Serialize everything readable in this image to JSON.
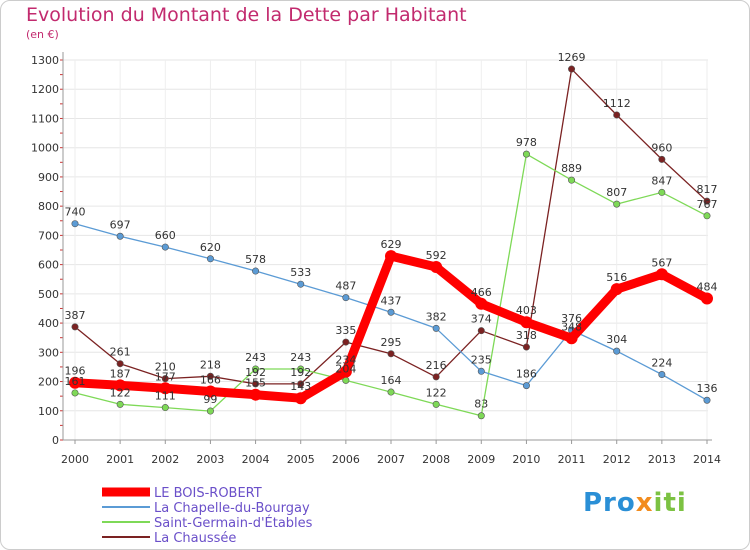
{
  "chart_data": {
    "type": "line",
    "title": "Evolution du Montant de la Dette par Habitant",
    "unit": "(en €)",
    "xlabel": "",
    "ylabel": "",
    "x": [
      "2000",
      "2001",
      "2002",
      "2003",
      "2004",
      "2005",
      "2006",
      "2007",
      "2008",
      "2009",
      "2010",
      "2011",
      "2012",
      "2013",
      "2014"
    ],
    "ylim": [
      0,
      1300
    ],
    "yticks": [
      0,
      100,
      200,
      300,
      400,
      500,
      600,
      700,
      800,
      900,
      1000,
      1100,
      1200,
      1300
    ],
    "grid": true,
    "legend": "bottom-left",
    "series": [
      {
        "name": "LE BOIS-ROBERT",
        "color": "#ff0000",
        "values": [
          196,
          187,
          177,
          166,
          155,
          143,
          234,
          629,
          592,
          466,
          403,
          348,
          516,
          567,
          484
        ]
      },
      {
        "name": "La Chapelle-du-Bourgay",
        "color": "#5b9bd5",
        "values": [
          740,
          697,
          660,
          620,
          578,
          533,
          487,
          437,
          382,
          235,
          186,
          376,
          304,
          224,
          136
        ]
      },
      {
        "name": "Saint-Germain-d'Étables",
        "color": "#7ed957",
        "values": [
          161,
          122,
          111,
          99,
          243,
          243,
          204,
          164,
          122,
          83,
          978,
          889,
          807,
          847,
          767
        ]
      },
      {
        "name": "La Chaussée",
        "color": "#7b2222",
        "values": [
          387,
          261,
          210,
          218,
          192,
          192,
          335,
          295,
          216,
          374,
          318,
          1269,
          1112,
          960,
          817
        ]
      }
    ]
  },
  "brand": {
    "part1": "Pro",
    "part2": "x",
    "part3": "iti"
  }
}
